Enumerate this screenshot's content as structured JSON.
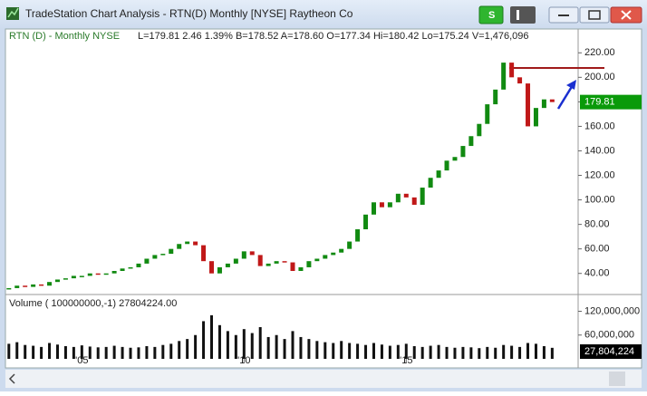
{
  "window": {
    "title": "TradeStation Chart Analysis - RTN(D) Monthly [NYSE] Raytheon Co",
    "button": "S"
  },
  "header": {
    "symbol": "RTN (D)   - Monthly  NYSE",
    "quote": "L=179.81  2.46  1.39%  B=178.52  A=178.60  O=177.34  Hi=180.42  Lo=175.24  V=1,476,096",
    "volume": "Volume ( 100000000,-1)      27804224.00"
  },
  "chart_data": [
    {
      "type": "candlestick",
      "up_color": "#118a11",
      "down_color": "#c01818",
      "x": [
        2002.75,
        2003,
        2003.25,
        2003.5,
        2003.75,
        2004,
        2004.25,
        2004.5,
        2004.75,
        2005,
        2005.25,
        2005.5,
        2005.75,
        2006,
        2006.25,
        2006.5,
        2006.75,
        2007,
        2007.25,
        2007.5,
        2007.75,
        2008,
        2008.25,
        2008.5,
        2008.75,
        2009,
        2009.25,
        2009.5,
        2009.75,
        2010,
        2010.25,
        2010.5,
        2010.75,
        2011,
        2011.25,
        2011.5,
        2011.75,
        2012,
        2012.25,
        2012.5,
        2012.75,
        2013,
        2013.25,
        2013.5,
        2013.75,
        2014,
        2014.25,
        2014.5,
        2014.75,
        2015,
        2015.25,
        2015.5,
        2015.75,
        2016,
        2016.25,
        2016.5,
        2016.75,
        2017,
        2017.25,
        2017.5,
        2017.75,
        2018,
        2018.25,
        2018.5,
        2018.75,
        2019,
        2019.25,
        2019.5
      ],
      "values": [
        28,
        30,
        29,
        31,
        30,
        33,
        35,
        36,
        38,
        38,
        40,
        39,
        40,
        42,
        44,
        45,
        48,
        52,
        55,
        56,
        60,
        64,
        66,
        63,
        50,
        40,
        45,
        48,
        52,
        58,
        55,
        46,
        48,
        50,
        49,
        42,
        45,
        50,
        52,
        55,
        57,
        60,
        66,
        76,
        88,
        98,
        94,
        98,
        105,
        102,
        96,
        110,
        118,
        124,
        132,
        135,
        144,
        152,
        162,
        178,
        190,
        212,
        200,
        195,
        160,
        175,
        182,
        179.81
      ],
      "last_value": 179.81,
      "xlim": [
        2002.7,
        2020.3
      ],
      "xticks": [
        {
          "value": 2005,
          "label": "'05"
        },
        {
          "value": 2010,
          "label": "'10"
        },
        {
          "value": 2015,
          "label": "'15"
        }
      ],
      "ylim": [
        25,
        235
      ],
      "yticks": [
        {
          "value": 40,
          "label": "40.00"
        },
        {
          "value": 60,
          "label": "60.00"
        },
        {
          "value": 80,
          "label": "80.00"
        },
        {
          "value": 100,
          "label": "100.00"
        },
        {
          "value": 120,
          "label": "120.00"
        },
        {
          "value": 140,
          "label": "140.00"
        },
        {
          "value": 160,
          "label": "160.00"
        },
        {
          "value": 180,
          "label": "180.00"
        },
        {
          "value": 200,
          "label": "200.00"
        },
        {
          "value": 220,
          "label": "220.00"
        }
      ]
    },
    {
      "type": "bar",
      "color": "#111111",
      "values": [
        38000000,
        42000000,
        35000000,
        33000000,
        30000000,
        40000000,
        36000000,
        32000000,
        30000000,
        34000000,
        31000000,
        29000000,
        30000000,
        33000000,
        30000000,
        28000000,
        29000000,
        32000000,
        30000000,
        35000000,
        38000000,
        45000000,
        50000000,
        60000000,
        95000000,
        110000000,
        85000000,
        70000000,
        60000000,
        75000000,
        65000000,
        80000000,
        55000000,
        60000000,
        50000000,
        70000000,
        55000000,
        50000000,
        45000000,
        42000000,
        40000000,
        45000000,
        40000000,
        38000000,
        35000000,
        40000000,
        36000000,
        33000000,
        35000000,
        38000000,
        32000000,
        30000000,
        33000000,
        35000000,
        30000000,
        28000000,
        30000000,
        29000000,
        27000000,
        30000000,
        28000000,
        35000000,
        33000000,
        30000000,
        40000000,
        38000000,
        32000000,
        27804224
      ],
      "last_value": {
        "value": 27804224,
        "label": "27,804,224"
      },
      "ylim": [
        0,
        160000000
      ],
      "yticks": [
        {
          "value": 60000000,
          "label": "60,000,000"
        },
        {
          "value": 120000000,
          "label": "120,000,000"
        }
      ]
    }
  ]
}
